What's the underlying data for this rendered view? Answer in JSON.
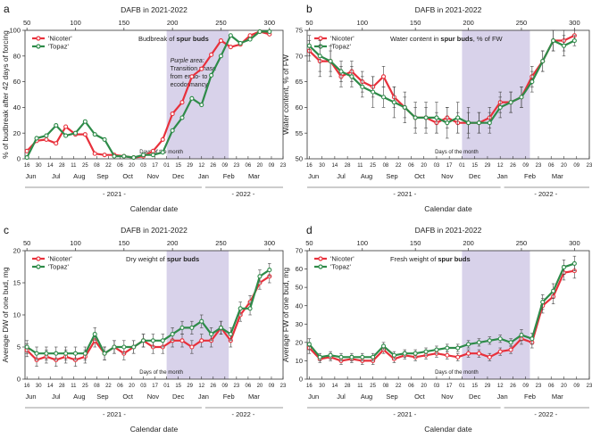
{
  "colors": {
    "nicoter": "#e8303b",
    "topaz": "#2e8b49",
    "phase": "#d8d2ea"
  },
  "x_axis": {
    "day_label": "Days of the month",
    "calendar_label": "Calendar date",
    "year1": "- 2021 -",
    "year2": "- 2022 -"
  },
  "chart_data": [
    {
      "type": "line",
      "letter": "a",
      "title": "Budbreak of spur buds",
      "title_plain": "Budbreak of ",
      "title_bold": "spur buds",
      "top_axis_label": "DAFB in 2021-2022",
      "ylabel": "% of budbreak after 42 days of forcing",
      "ylim": [
        0,
        100
      ],
      "yticks": [
        0,
        20,
        40,
        60,
        80,
        100
      ],
      "legend": [
        "'Nicoter'",
        "'Topaz'"
      ],
      "annotation": [
        "Purple area:",
        "Transition phase",
        "from endo- to",
        "ecodormancy"
      ],
      "series": [
        {
          "name": "'Nicoter'",
          "x": [
            1,
            6,
            11,
            16,
            21,
            26,
            31,
            36,
            41,
            46,
            51,
            56,
            61,
            66,
            71,
            76,
            81,
            86,
            91,
            96,
            101,
            106,
            111,
            116,
            121,
            126
          ],
          "y": [
            6,
            14,
            15,
            12,
            25,
            19,
            19,
            4,
            3,
            3,
            2,
            1,
            2,
            6,
            15,
            35,
            44,
            64,
            70,
            81,
            92,
            87,
            89,
            96,
            99,
            97
          ]
        },
        {
          "name": "'Topaz'",
          "x": [
            1,
            6,
            11,
            16,
            21,
            26,
            31,
            36,
            41,
            46,
            51,
            56,
            61,
            66,
            71,
            76,
            81,
            86,
            91,
            96,
            101,
            106,
            111,
            116,
            121,
            126
          ],
          "y": [
            1,
            16,
            18,
            26,
            18,
            20,
            29,
            19,
            15,
            2,
            2,
            1,
            3,
            3,
            5,
            22,
            32,
            47,
            42,
            65,
            80,
            96,
            90,
            93,
            99,
            99
          ]
        }
      ]
    },
    {
      "type": "line",
      "letter": "b",
      "title": "Water content in spur buds, % of FW",
      "title_plain": "Water content in ",
      "title_bold": "spur buds",
      "title_after": ", % of FW",
      "top_axis_label": "DAFB in 2021-2022",
      "ylabel": "Water content, % of FW",
      "ylim": [
        50,
        75
      ],
      "yticks": [
        50,
        55,
        60,
        65,
        70,
        75
      ],
      "legend": [
        "'Nicoter'",
        "'Topaz'"
      ],
      "series": [
        {
          "name": "'Nicoter'",
          "x": [
            1,
            6,
            11,
            16,
            21,
            26,
            31,
            36,
            41,
            46,
            51,
            56,
            61,
            66,
            71,
            76,
            81,
            86,
            91,
            96,
            101,
            106,
            111,
            116,
            121,
            126
          ],
          "y": [
            71,
            69,
            69,
            66,
            67,
            65,
            64,
            66,
            62,
            60,
            58,
            58,
            57,
            58,
            57,
            57,
            57,
            58,
            61,
            61,
            62,
            66,
            69,
            73,
            73,
            74
          ],
          "err": [
            2,
            3,
            2,
            2,
            2,
            2,
            2,
            2,
            2,
            2,
            2,
            2,
            2,
            2,
            2,
            2,
            2,
            2,
            2,
            2,
            2,
            2,
            2,
            2,
            2,
            1
          ]
        },
        {
          "name": "'Topaz'",
          "x": [
            1,
            6,
            11,
            16,
            21,
            26,
            31,
            36,
            41,
            46,
            51,
            56,
            61,
            66,
            71,
            76,
            81,
            86,
            91,
            96,
            101,
            106,
            111,
            116,
            121,
            126
          ],
          "y": [
            72,
            70,
            69,
            67,
            66,
            64,
            63,
            62,
            61,
            60,
            58,
            58,
            58,
            57,
            58,
            57,
            57,
            57,
            60,
            61,
            62,
            65,
            69,
            73,
            72,
            73
          ],
          "err": [
            2,
            3,
            3,
            2,
            2,
            2,
            3,
            2,
            3,
            3,
            3,
            3,
            3,
            3,
            3,
            3,
            2,
            2,
            2,
            2,
            2,
            2,
            2,
            2,
            2,
            1
          ]
        }
      ]
    },
    {
      "type": "line",
      "letter": "c",
      "title": "Dry weight of spur buds",
      "title_plain": "Dry weight of ",
      "title_bold": "spur buds",
      "top_axis_label": "DAFB in 2021-2022",
      "ylabel": "Average DW of one bud, mg",
      "ylim": [
        0,
        20
      ],
      "yticks": [
        0,
        5,
        10,
        15,
        20
      ],
      "legend": [
        "'Nicoter'",
        "'Topaz'"
      ],
      "series": [
        {
          "name": "'Nicoter'",
          "x": [
            1,
            6,
            11,
            16,
            21,
            26,
            31,
            36,
            41,
            46,
            51,
            56,
            61,
            66,
            71,
            76,
            81,
            86,
            91,
            96,
            101,
            106,
            111,
            116,
            121,
            126
          ],
          "y": [
            4.5,
            3,
            3.5,
            3,
            3.5,
            3,
            3.5,
            6,
            4,
            5,
            4,
            5,
            6,
            5,
            5,
            6,
            6,
            5,
            6,
            6,
            8,
            6,
            10,
            12,
            15,
            16
          ],
          "err": [
            1,
            1,
            1,
            1,
            1,
            1,
            1,
            1,
            1,
            1,
            1,
            1,
            1,
            1,
            1,
            1,
            1,
            1,
            1,
            1,
            1,
            1,
            1,
            1,
            1,
            1
          ]
        },
        {
          "name": "'Topaz'",
          "x": [
            1,
            6,
            11,
            16,
            21,
            26,
            31,
            36,
            41,
            46,
            51,
            56,
            61,
            66,
            71,
            76,
            81,
            86,
            91,
            96,
            101,
            106,
            111,
            116,
            121,
            126
          ],
          "y": [
            5,
            4,
            4,
            4,
            4,
            4,
            4,
            7,
            4,
            5,
            5,
            5,
            6,
            6,
            6,
            7,
            8,
            8,
            9,
            7,
            8,
            7,
            11,
            11,
            16,
            17
          ],
          "err": [
            1,
            1,
            1,
            1,
            1,
            1,
            1,
            1,
            1,
            1,
            1,
            1,
            1,
            1,
            1,
            1,
            1,
            1,
            1,
            1,
            1,
            1,
            1,
            1,
            1,
            1
          ]
        }
      ]
    },
    {
      "type": "line",
      "letter": "d",
      "title": "Fresh weight of spur buds",
      "title_plain": "Fresh weight of ",
      "title_bold": "spur buds",
      "top_axis_label": "DAFB in 2021-2022",
      "ylabel": "Average FW of one bud, mg",
      "ylim": [
        0,
        70
      ],
      "yticks": [
        0,
        10,
        20,
        30,
        40,
        50,
        60,
        70
      ],
      "legend": [
        "'Nicoter'",
        "'Topaz'"
      ],
      "series": [
        {
          "name": "'Nicoter'",
          "x": [
            1,
            6,
            11,
            16,
            21,
            26,
            31,
            36,
            41,
            46,
            51,
            56,
            61,
            66,
            71,
            76,
            81,
            86,
            91,
            96,
            101,
            106,
            111,
            116,
            121,
            126
          ],
          "y": [
            17,
            11,
            12,
            10,
            11,
            10,
            10,
            16,
            11,
            13,
            12,
            13,
            14,
            13,
            12,
            14,
            14,
            12,
            15,
            16,
            22,
            20,
            40,
            45,
            58,
            59
          ],
          "err": [
            3,
            2,
            2,
            2,
            2,
            2,
            2,
            2,
            2,
            2,
            2,
            2,
            2,
            2,
            2,
            2,
            2,
            2,
            2,
            2,
            3,
            3,
            4,
            4,
            4,
            4
          ]
        },
        {
          "name": "'Topaz'",
          "x": [
            1,
            6,
            11,
            16,
            21,
            26,
            31,
            36,
            41,
            46,
            51,
            56,
            61,
            66,
            71,
            76,
            81,
            86,
            91,
            96,
            101,
            106,
            111,
            116,
            121,
            126
          ],
          "y": [
            19,
            12,
            13,
            12,
            12,
            12,
            12,
            18,
            13,
            14,
            14,
            15,
            16,
            17,
            17,
            19,
            20,
            21,
            22,
            20,
            24,
            22,
            42,
            48,
            61,
            63
          ],
          "err": [
            3,
            2,
            2,
            2,
            2,
            2,
            2,
            2,
            2,
            2,
            2,
            2,
            2,
            2,
            2,
            2,
            2,
            2,
            2,
            2,
            3,
            3,
            4,
            4,
            4,
            4
          ]
        }
      ]
    }
  ],
  "shared_axis": {
    "x_range": [
      0,
      133
    ],
    "dafb_ticks": [
      {
        "x": 1,
        "label": "50"
      },
      {
        "x": 26,
        "label": "100"
      },
      {
        "x": 51,
        "label": "150"
      },
      {
        "x": 76,
        "label": "200"
      },
      {
        "x": 101,
        "label": "250"
      },
      {
        "x": 126,
        "label": "300"
      }
    ],
    "phase_span": [
      73,
      105
    ],
    "day_ticks": [
      {
        "x": 1,
        "label": "16"
      },
      {
        "x": 7,
        "label": "30"
      },
      {
        "x": 13,
        "label": "14"
      },
      {
        "x": 19,
        "label": "28"
      },
      {
        "x": 25,
        "label": "11"
      },
      {
        "x": 31,
        "label": "25"
      },
      {
        "x": 37,
        "label": "08"
      },
      {
        "x": 43,
        "label": "22"
      },
      {
        "x": 49,
        "label": "06"
      },
      {
        "x": 55,
        "label": "20"
      },
      {
        "x": 61,
        "label": "03"
      },
      {
        "x": 67,
        "label": "17"
      },
      {
        "x": 73,
        "label": "01"
      },
      {
        "x": 79,
        "label": "15"
      },
      {
        "x": 85,
        "label": "29"
      },
      {
        "x": 91,
        "label": "12"
      },
      {
        "x": 97,
        "label": "26"
      },
      {
        "x": 103,
        "label": "09"
      },
      {
        "x": 109,
        "label": "23"
      },
      {
        "x": 115,
        "label": "06"
      },
      {
        "x": 121,
        "label": "20"
      },
      {
        "x": 127,
        "label": "09"
      },
      {
        "x": 133,
        "label": "23"
      }
    ],
    "months": [
      {
        "x": 3,
        "label": "Jun"
      },
      {
        "x": 16,
        "label": "Jul"
      },
      {
        "x": 28,
        "label": "Aug"
      },
      {
        "x": 40,
        "label": "Sep"
      },
      {
        "x": 53,
        "label": "Oct"
      },
      {
        "x": 66,
        "label": "Nov"
      },
      {
        "x": 79,
        "label": "Dec"
      },
      {
        "x": 92,
        "label": "Jan"
      },
      {
        "x": 105,
        "label": "Feb"
      },
      {
        "x": 118,
        "label": "Mar"
      }
    ]
  }
}
